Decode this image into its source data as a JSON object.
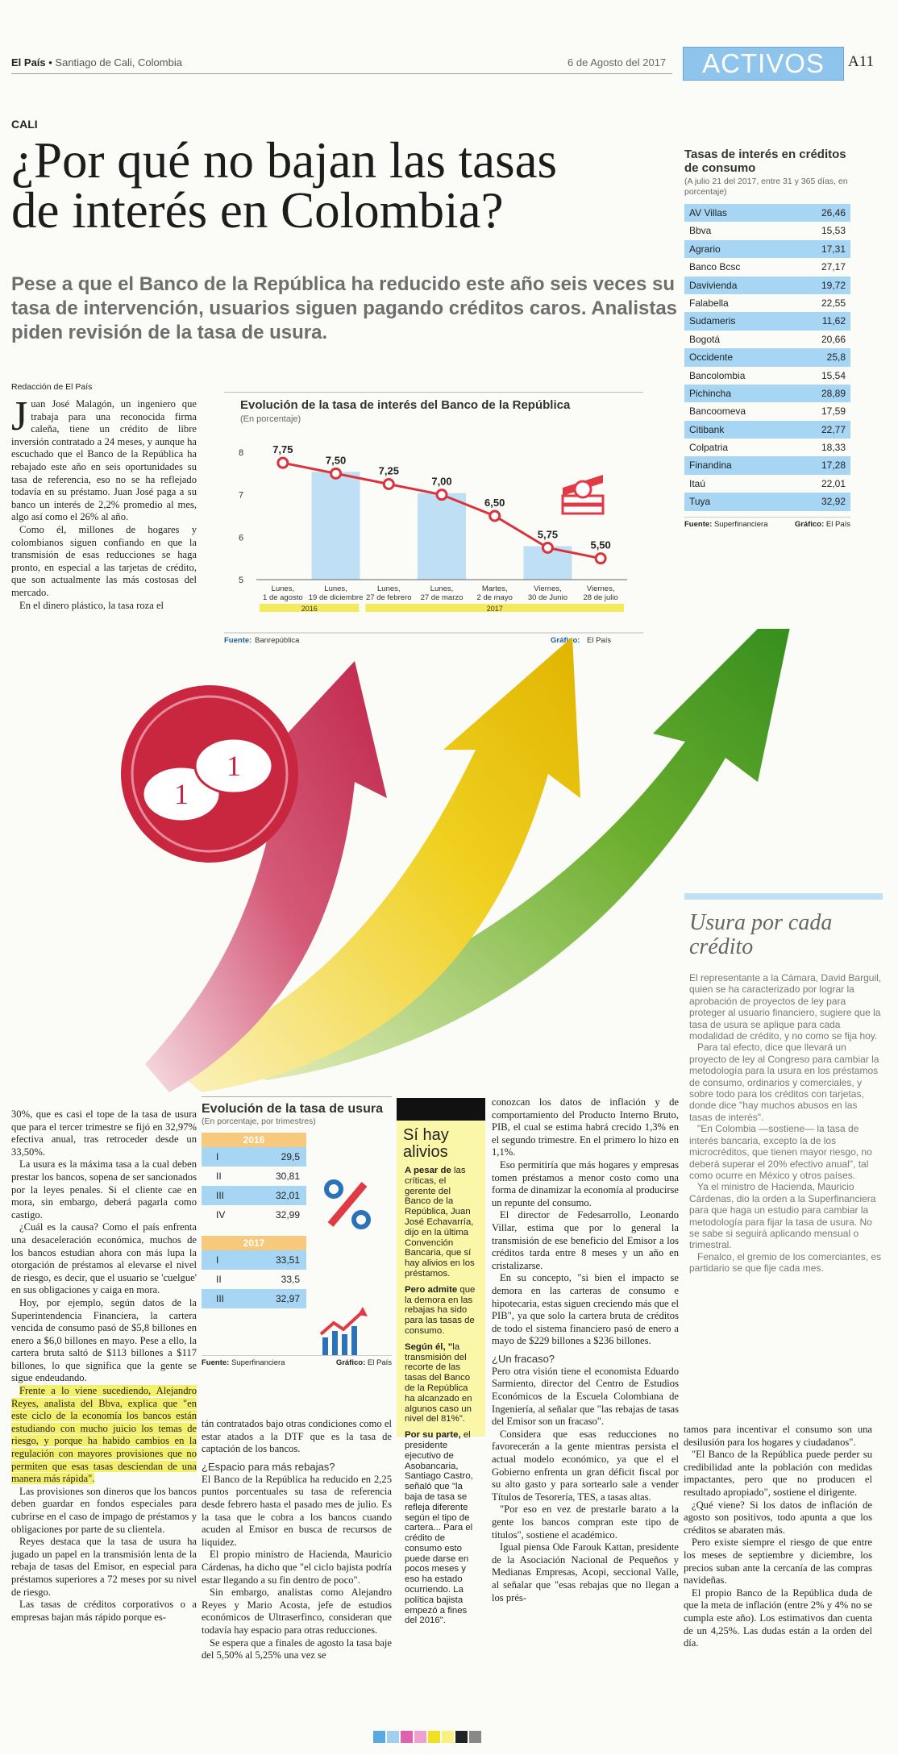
{
  "header": {
    "paper": "El País",
    "sep": " • ",
    "city": "Santiago de Cali, Colombia",
    "date": "6 de Agosto del 2017",
    "section": "ACTIVOS",
    "page": "A11"
  },
  "article": {
    "kicker": "CALI",
    "headline_l1": "¿Por qué no bajan las tasas",
    "headline_l2": "de interés en Colombia?",
    "standfirst": "Pese a que el Banco de la República ha reducido este año seis veces su tasa de intervención, usuarios siguen pagando créditos caros. Analistas piden revisión de la tasa de usura.",
    "byline": "Redacción de El País",
    "dropcap": "J",
    "c1p1": "uan José Malagón, un ingeniero que trabaja para una reconocida firma caleña, tiene un crédito de libre inversión contratado a 24 meses, y aunque ha escuchado que el Banco de la República ha rebajado este año en seis oportunidades su tasa de referencia, eso no se ha reflejado todavía en su préstamo. Juan José paga a su banco un interés de 2,2% promedio al mes, algo así como el 26% al año.",
    "c1p2": "Como él, millones de hogares y colombianos siguen confiando en que la transmisión de esas reducciones se haga pronto, en especial a las tarjetas de crédito, que son actualmente las más costosas del mercado.",
    "c1p3": "En el dinero plástico, la tasa roza el",
    "c1bp1": "30%, que es casi el tope de la tasa de usura que para el tercer trimestre se fijó en 32,97% efectiva anual, tras retroceder desde un 33,50%.",
    "c1bp2": "La usura es la máxima tasa a la cual deben prestar los bancos, sopena de ser sancionados por la leyes penales. Si el cliente cae en mora, sin embargo, deberá pagarla como castigo.",
    "c1bp3": "¿Cuál es la causa? Como el país enfrenta una desaceleración económica, muchos de los bancos estudian ahora con más lupa la otorgación de préstamos al elevarse el nivel de riesgo, es decir, que el usuario se 'cuelgue' en sus obligaciones y caiga en mora.",
    "c1bp4": "Hoy, por ejemplo, según datos de la Superintendencia Financiera, la cartera vencida de consumo pasó de $5,8 billones en enero a $6,0 billones en mayo. Pese a ello, la cartera bruta saltó de $113 billones a $117 billones, lo que significa que la gente se sigue endeudando.",
    "c1bp5": "Frente a lo viene sucediendo, Alejandro Reyes, analista del Bbva, explica que \"en este ciclo de la economía los bancos están estudiando con mucho juicio los temas de riesgo, y porque ha habido cambios en la regulación con mayores provisiones que no permiten que esas tasas desciendan de una manera más rápida\".",
    "c1bp6": "Las provisiones son dineros que los bancos deben guardar en fondos especiales para cubrirse en el caso de impago de préstamos y obligaciones por parte de su clientela.",
    "c1bp7": "Reyes destaca que la tasa de usura ha jugado un papel en la transmisión lenta de la rebaja de tasas del Emisor, en especial para préstamos superiores a 72 meses por su nivel de riesgo.",
    "c1bp8": "Las tasas de créditos corporativos o a empresas bajan más rápido porque es-",
    "c2p1": "tán contratados bajo otras condiciones como el estar atados a la DTF que es la tasa de captación de los bancos.",
    "c2s1": "¿Espacio para más rebajas?",
    "c2p2": "El Banco de la República ha reducido en 2,25 puntos porcentuales su tasa de referencia desde febrero hasta el pasado mes de julio. Es la tasa que le cobra a los bancos cuando acuden al Emisor en busca de recursos de liquidez.",
    "c2p3": "El propio ministro de Hacienda, Mauricio Cárdenas, ha dicho que \"el ciclo bajista podría estar llegando a su fin dentro de poco\".",
    "c2p4": "Sin embargo, analistas como Alejandro Reyes y Mario Acosta, jefe de estudios económicos de Ultraserfinco, consideran que todavía hay espacio para otras reducciones.",
    "c2p5": "Se espera que a finales de agosto la tasa baje del 5,50% al 5,25% una vez se",
    "c3p1": "conozcan los datos de inflación y de comportamiento del Producto Interno Bruto, PIB, el cual se estima habrá crecido 1,3% en el segundo trimestre. En el primero lo hizo en 1,1%.",
    "c3p2": "Eso permitiría que más hogares y empresas tomen préstamos a menor costo como una forma de dinamizar la economía al producirse un repunte del consumo.",
    "c3p3": "El director de Fedesarrollo, Leonardo Villar, estima que por lo general la transmisión de ese beneficio del Emisor a los créditos tarda entre 8 meses y un año en cristalizarse.",
    "c3p4": "En su concepto, \"si bien el impacto se demora en las carteras de consumo e hipotecaria, estas siguen creciendo más que el PIB\", ya que solo la cartera bruta de créditos de todo el sistema financiero pasó de enero a mayo de $229 billones a $236 billones.",
    "c3s1": "¿Un fracaso?",
    "c3p5": "Pero otra visión tiene el economista Eduardo Sarmiento, director del Centro de Estudios Económicos de la Escuela Colombiana de Ingeniería, al señalar que \"las rebajas de tasas del Emisor son un fracaso\".",
    "c3p6": "Considera que esas reducciones no favorecerán a la gente mientras persista el actual modelo económico, ya que el el Gobierno enfrenta un gran déficit fiscal por su alto gasto y para sortearlo sale a vender Títulos de Tesorería, TES, a tasas altas.",
    "c3p7": "\"Por eso en vez de prestarle barato a la gente los bancos compran este tipo de títulos\", sostiene el académico.",
    "c3p8": "Igual piensa Ode Farouk Kattan, presidente de la Asociación Nacional de Pequeños y Medianas Empresas, Acopi, seccional Valle, al señalar que \"esas rebajas que no llegan a los prés-",
    "c4p1": "tamos para incentivar el consumo son una desilusión para los hogares y ciudadanos\".",
    "c4p2": "\"El Banco de la República puede perder su credibilidad ante la población con medidas impactantes, pero que no producen el resultado apropiado\", sostiene el dirigente.",
    "c4p3": "¿Qué viene? Si los datos de inflación de agosto son positivos, todo apunta a que los créditos se abaraten más.",
    "c4p4": "Pero existe siempre el riesgo de que entre los meses de septiembre y diciembre, los precios suban ante la cercanía de las compras navideñas.",
    "c4p5": "El propio Banco de la República duda de que la meta de inflación (entre 2% y 4% no se cumpla este año). Los estimativos dan cuenta de un 4,25%. Las dudas están a la orden del día."
  },
  "rates_table": {
    "title": "Tasas de interés en créditos de consumo",
    "note": "(A julio 21 del 2017, entre 31 y 365 días, en porcentaje)",
    "rows": [
      {
        "bank": "AV Villas",
        "rate": "26,46"
      },
      {
        "bank": "Bbva",
        "rate": "15,53"
      },
      {
        "bank": "Agrario",
        "rate": "17,31"
      },
      {
        "bank": "Banco Bcsc",
        "rate": "27,17"
      },
      {
        "bank": "Davivienda",
        "rate": "19,72"
      },
      {
        "bank": "Falabella",
        "rate": "22,55"
      },
      {
        "bank": "Sudameris",
        "rate": "11,62"
      },
      {
        "bank": "Bogotá",
        "rate": "20,66"
      },
      {
        "bank": "Occidente",
        "rate": "25,8"
      },
      {
        "bank": "Bancolombia",
        "rate": "15,54"
      },
      {
        "bank": "Pichincha",
        "rate": "28,89"
      },
      {
        "bank": "Bancoomeva",
        "rate": "17,59"
      },
      {
        "bank": "Citibank",
        "rate": "22,77"
      },
      {
        "bank": "Colpatria",
        "rate": "18,33"
      },
      {
        "bank": "Finandina",
        "rate": "17,28"
      },
      {
        "bank": "Itaú",
        "rate": "22,01"
      },
      {
        "bank": "Tuya",
        "rate": "32,92"
      }
    ],
    "source_label": "Fuente:",
    "source": "Superfinanciera",
    "graphic_label": "Gráfico:",
    "graphic": "El País"
  },
  "chart_data": [
    {
      "type": "line",
      "title": "Evolución de la tasa de interés del Banco de la República",
      "subtitle": "(En porcentaje)",
      "categories": [
        "Lunes, 1 de agosto",
        "Lunes, 19 de diciembre",
        "Lunes, 27 de febrero",
        "Lunes, 27 de marzo",
        "Martes, 2 de mayo",
        "Viernes, 30 de Junio",
        "Viernes, 28 de julio"
      ],
      "values": [
        7.75,
        7.5,
        7.25,
        7.0,
        6.5,
        5.75,
        5.5
      ],
      "value_labels": [
        "7,75",
        "7,50",
        "7,25",
        "7,00",
        "6,50",
        "5,75",
        "5,50"
      ],
      "yticks": [
        "8",
        "7",
        "6",
        "5"
      ],
      "ylim": [
        5,
        8
      ],
      "year_groups": [
        {
          "label": "2016",
          "span": 2
        },
        {
          "label": "2017",
          "span": 5
        }
      ],
      "source_label": "Fuente:",
      "source": "Banrepública",
      "graphic_label": "Gráfico:",
      "graphic": "El País"
    },
    {
      "type": "table",
      "title": "Evolución de la tasa de usura",
      "subtitle": "(En porcentaje, por trimestres)",
      "groups": [
        {
          "year": "2016",
          "rows": [
            {
              "q": "I",
              "v": "29,5"
            },
            {
              "q": "II",
              "v": "30,81"
            },
            {
              "q": "III",
              "v": "32,01"
            },
            {
              "q": "IV",
              "v": "32,99"
            }
          ]
        },
        {
          "year": "2017",
          "rows": [
            {
              "q": "I",
              "v": "33,51"
            },
            {
              "q": "II",
              "v": "33,5"
            },
            {
              "q": "III",
              "v": "32,97"
            }
          ]
        }
      ],
      "source_label": "Fuente:",
      "source": "Superfinanciera",
      "graphic_label": "Gráfico:",
      "graphic": "El País"
    }
  ],
  "alivios": {
    "title": "Sí hay alivios",
    "i1b": "A pesar de",
    "i1": "las críticas, el gerente del Banco de la República, Juan José Echavarría, dijo en la última Convención Bancaria, que sí hay alivios en los préstamos.",
    "i2b": "Pero admite",
    "i2": "que la demora en las rebajas ha sido para las tasas de consumo.",
    "i3b": "Según él, \"",
    "i3": "la transmisión del recorte de las tasas del Banco de la República ha alcanzado en algunos caso un nivel del 81%\".",
    "i4b": "Por su parte,",
    "i4": "el presidente ejecutivo de Asobancaria, Santiago Castro, señaló que \"la baja de tasa se refleja diferente según el tipo de cartera... Para el crédito de consumo esto puede darse en pocos meses y eso ha estado ocurriendo. La política bajista empezó a fines del 2016\"."
  },
  "usura_side": {
    "title": "Usura por cada crédito",
    "p1": "El representante a la Cámara, David Barguil, quien se ha caracterizado por lograr la aprobación de proyectos de ley para proteger al usuario financiero, sugiere que la tasa de usura se aplique para cada modalidad de crédito, y no como se fija hoy.",
    "p2": "Para tal efecto, dice que llevará un proyecto de ley al Congreso para cambiar la metodología para la usura en los préstamos de consumo, ordinarios y comerciales, y sobre todo para los créditos con tarjetas, donde dice \"hay muchos abusos en las tasas de interés\".",
    "p3": "\"En Colombia —sostiene— la tasa de interés bancaria, excepto la de los microcréditos, que tienen mayor riesgo, no deberá superar el 20% efectivo anual\", tal como ocurre en México y otros países.",
    "p4": "Ya el ministro de Hacienda, Mauricio Cárdenas, dio la orden a la Superfinanciera para que haga un estudio para cambiar la metodología para fijar la tasa de usura. No se sabe si seguirá aplicando mensual o trimestral.",
    "p5": "Fenalco, el gremio de los comerciantes, es partidario se que fije cada mes."
  },
  "colors": {
    "accent": "#8fc4ec",
    "row_blue": "#a6d6f4",
    "line_red": "#d9343d",
    "highlight": "#f5f06b"
  }
}
